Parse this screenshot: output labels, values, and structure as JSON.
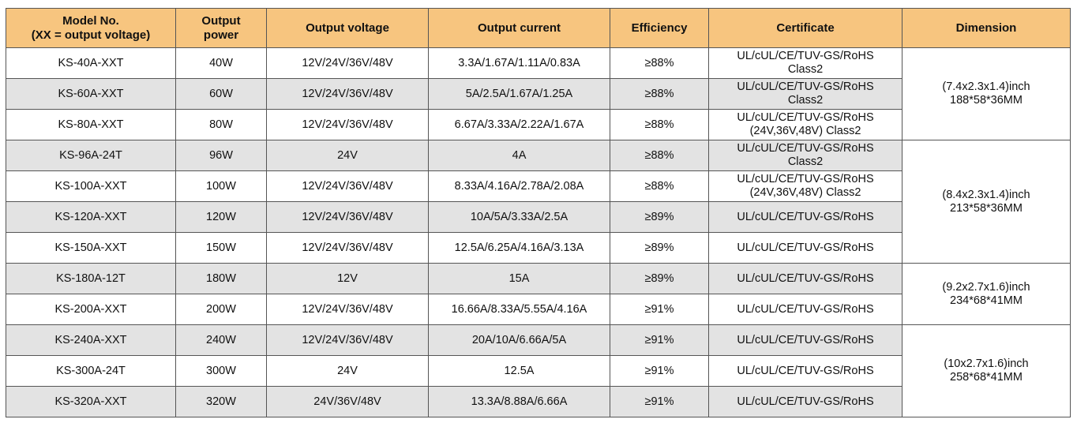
{
  "colors": {
    "header": "#f7c57f",
    "stripe": "#e3e3e3",
    "border": "#555555"
  },
  "headers": {
    "model_line1": "Model No.",
    "model_line2": "(XX = output voltage)",
    "power_line1": "Output",
    "power_line2": "power",
    "voltage": "Output voltage",
    "current": "Output current",
    "efficiency": "Efficiency",
    "certificate": "Certificate",
    "dimension": "Dimension"
  },
  "rows": [
    {
      "model": "KS-40A-XXT",
      "power": "40W",
      "voltage": "12V/24V/36V/48V",
      "current": "3.3A/1.67A/1.11A/0.83A",
      "efficiency": "≥88%",
      "cert1": "UL/cUL/CE/TUV-GS/RoHS",
      "cert2": "Class2"
    },
    {
      "model": "KS-60A-XXT",
      "power": "60W",
      "voltage": "12V/24V/36V/48V",
      "current": "5A/2.5A/1.67A/1.25A",
      "efficiency": "≥88%",
      "cert1": "UL/cUL/CE/TUV-GS/RoHS",
      "cert2": "Class2"
    },
    {
      "model": "KS-80A-XXT",
      "power": "80W",
      "voltage": "12V/24V/36V/48V",
      "current": "6.67A/3.33A/2.22A/1.67A",
      "efficiency": "≥88%",
      "cert1": "UL/cUL/CE/TUV-GS/RoHS",
      "cert2": "(24V,36V,48V) Class2"
    },
    {
      "model": "KS-96A-24T",
      "power": "96W",
      "voltage": "24V",
      "current": "4A",
      "efficiency": "≥88%",
      "cert1": "UL/cUL/CE/TUV-GS/RoHS",
      "cert2": "Class2"
    },
    {
      "model": "KS-100A-XXT",
      "power": "100W",
      "voltage": "12V/24V/36V/48V",
      "current": "8.33A/4.16A/2.78A/2.08A",
      "efficiency": "≥88%",
      "cert1": "UL/cUL/CE/TUV-GS/RoHS",
      "cert2": "(24V,36V,48V) Class2"
    },
    {
      "model": "KS-120A-XXT",
      "power": "120W",
      "voltage": "12V/24V/36V/48V",
      "current": "10A/5A/3.33A/2.5A",
      "efficiency": "≥89%",
      "cert1": "UL/cUL/CE/TUV-GS/RoHS"
    },
    {
      "model": "KS-150A-XXT",
      "power": "150W",
      "voltage": "12V/24V/36V/48V",
      "current": "12.5A/6.25A/4.16A/3.13A",
      "efficiency": "≥89%",
      "cert1": "UL/cUL/CE/TUV-GS/RoHS"
    },
    {
      "model": "KS-180A-12T",
      "power": "180W",
      "voltage": "12V",
      "current": "15A",
      "efficiency": "≥89%",
      "cert1": "UL/cUL/CE/TUV-GS/RoHS"
    },
    {
      "model": "KS-200A-XXT",
      "power": "200W",
      "voltage": "12V/24V/36V/48V",
      "current": "16.66A/8.33A/5.55A/4.16A",
      "efficiency": "≥91%",
      "cert1": "UL/cUL/CE/TUV-GS/RoHS"
    },
    {
      "model": "KS-240A-XXT",
      "power": "240W",
      "voltage": "12V/24V/36V/48V",
      "current": "20A/10A/6.66A/5A",
      "efficiency": "≥91%",
      "cert1": "UL/cUL/CE/TUV-GS/RoHS"
    },
    {
      "model": "KS-300A-24T",
      "power": "300W",
      "voltage": "24V",
      "current": "12.5A",
      "efficiency": "≥91%",
      "cert1": "UL/cUL/CE/TUV-GS/RoHS"
    },
    {
      "model": "KS-320A-XXT",
      "power": "320W",
      "voltage": "24V/36V/48V",
      "current": "13.3A/8.88A/6.66A",
      "efficiency": "≥91%",
      "cert1": "UL/cUL/CE/TUV-GS/RoHS"
    }
  ],
  "dimensions": [
    {
      "inch": "(7.4x2.3x1.4)inch",
      "mm": "188*58*36MM",
      "start": 0,
      "span": 3
    },
    {
      "inch": "(8.4x2.3x1.4)inch",
      "mm": "213*58*36MM",
      "start": 3,
      "span": 4
    },
    {
      "inch": "(9.2x2.7x1.6)inch",
      "mm": "234*68*41MM",
      "start": 7,
      "span": 2
    },
    {
      "inch": "(10x2.7x1.6)inch",
      "mm": "258*68*41MM",
      "start": 9,
      "span": 3
    }
  ]
}
